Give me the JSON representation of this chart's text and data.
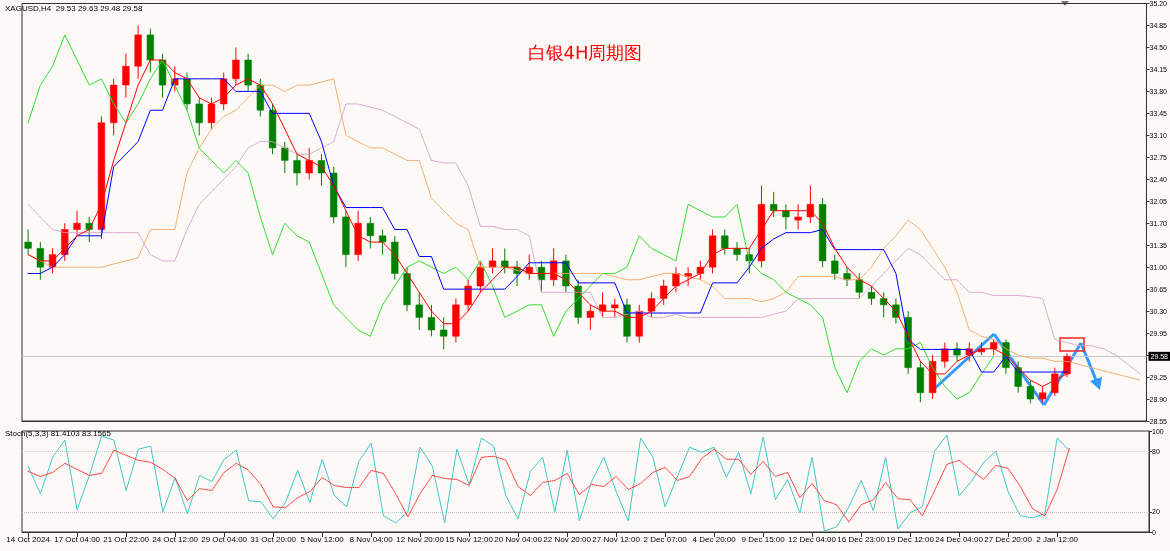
{
  "chart_data": [
    {
      "type": "candlestick",
      "title": "白银4H周期图",
      "annotations": [
        "XAGUSD,H4  29.53 29.63 29.48 29.58"
      ],
      "categories": [
        null,
        null,
        null,
        null,
        null,
        null,
        null,
        null,
        null,
        null,
        null,
        null,
        null,
        null,
        null,
        null,
        null,
        null,
        null,
        null,
        null,
        null,
        null,
        null,
        null,
        null,
        null,
        null,
        null,
        null,
        null,
        null,
        null,
        null,
        null,
        null,
        null,
        null,
        null,
        null,
        null,
        null,
        null,
        null,
        null,
        null,
        null,
        null,
        null,
        null,
        null,
        null,
        null,
        null,
        null,
        null,
        null,
        null,
        null,
        null,
        null,
        null,
        null,
        null,
        null,
        null,
        null,
        null,
        null,
        null,
        null,
        null,
        null,
        null,
        null,
        null,
        null,
        null,
        null,
        null,
        null,
        null,
        null,
        null,
        null,
        null,
        null,
        null,
        null,
        null,
        null,
        null
      ],
      "ohlc": [
        [
          31.4,
          31.6,
          31.2,
          31.3
        ],
        [
          31.3,
          31.4,
          30.8,
          31.0
        ],
        [
          31.0,
          31.3,
          30.9,
          31.2
        ],
        [
          31.2,
          31.7,
          31.1,
          31.6
        ],
        [
          31.6,
          31.9,
          31.5,
          31.7
        ],
        [
          31.7,
          31.8,
          31.4,
          31.6
        ],
        [
          31.6,
          33.4,
          31.45,
          33.3
        ],
        [
          33.3,
          34.0,
          33.1,
          33.9
        ],
        [
          33.9,
          34.4,
          33.7,
          34.2
        ],
        [
          34.2,
          34.85,
          34.0,
          34.7
        ],
        [
          34.7,
          34.8,
          34.1,
          34.3
        ],
        [
          34.3,
          34.4,
          33.7,
          33.9
        ],
        [
          33.9,
          34.2,
          33.8,
          34.0
        ],
        [
          34.0,
          34.1,
          33.5,
          33.6
        ],
        [
          33.6,
          33.7,
          33.1,
          33.3
        ],
        [
          33.3,
          33.7,
          33.2,
          33.6
        ],
        [
          33.6,
          34.1,
          33.5,
          34.0
        ],
        [
          34.0,
          34.5,
          33.9,
          34.3
        ],
        [
          34.3,
          34.4,
          33.8,
          33.9
        ],
        [
          33.9,
          34.0,
          33.4,
          33.5
        ],
        [
          33.5,
          33.6,
          32.8,
          32.9
        ],
        [
          32.9,
          33.0,
          32.5,
          32.7
        ],
        [
          32.7,
          32.8,
          32.3,
          32.5
        ],
        [
          32.5,
          32.9,
          32.4,
          32.7
        ],
        [
          32.7,
          32.8,
          32.3,
          32.5
        ],
        [
          32.5,
          32.6,
          31.7,
          31.8
        ],
        [
          31.8,
          31.9,
          31.0,
          31.2
        ],
        [
          31.2,
          31.9,
          31.1,
          31.7
        ],
        [
          31.7,
          31.8,
          31.3,
          31.5
        ],
        [
          31.5,
          31.6,
          31.2,
          31.4
        ],
        [
          31.4,
          31.5,
          30.8,
          30.9
        ],
        [
          30.9,
          31.0,
          30.3,
          30.4
        ],
        [
          30.4,
          30.6,
          30.0,
          30.2
        ],
        [
          30.2,
          30.4,
          29.9,
          30.0
        ],
        [
          30.0,
          30.2,
          29.69,
          29.9
        ],
        [
          29.9,
          30.5,
          29.8,
          30.4
        ],
        [
          30.4,
          30.8,
          30.3,
          30.7
        ],
        [
          30.7,
          31.1,
          30.6,
          31.0
        ],
        [
          31.0,
          31.3,
          30.9,
          31.1
        ],
        [
          31.1,
          31.3,
          30.9,
          31.0
        ],
        [
          31.0,
          31.1,
          30.7,
          30.9
        ],
        [
          30.9,
          31.2,
          30.8,
          31.0
        ],
        [
          31.0,
          31.1,
          30.6,
          30.8
        ],
        [
          30.8,
          31.3,
          30.7,
          31.1
        ],
        [
          31.1,
          31.2,
          30.6,
          30.7
        ],
        [
          30.7,
          30.8,
          30.1,
          30.2
        ],
        [
          30.2,
          30.4,
          30.0,
          30.3
        ],
        [
          30.3,
          30.6,
          30.2,
          30.4
        ],
        [
          30.35,
          30.5,
          30.2,
          30.4
        ],
        [
          30.4,
          30.5,
          29.8,
          29.9
        ],
        [
          29.9,
          30.4,
          29.8,
          30.3
        ],
        [
          30.3,
          30.6,
          30.2,
          30.5
        ],
        [
          30.5,
          30.8,
          30.4,
          30.7
        ],
        [
          30.7,
          31.0,
          30.6,
          30.9
        ],
        [
          30.85,
          31.0,
          30.7,
          30.9
        ],
        [
          30.9,
          31.1,
          30.8,
          31.0
        ],
        [
          31.0,
          31.6,
          30.9,
          31.5
        ],
        [
          31.5,
          31.6,
          31.2,
          31.3
        ],
        [
          31.3,
          31.4,
          31.1,
          31.2
        ],
        [
          31.2,
          31.3,
          30.9,
          31.1
        ],
        [
          31.1,
          32.3,
          31.0,
          32.0
        ],
        [
          32.0,
          32.2,
          31.8,
          31.9
        ],
        [
          31.9,
          32.0,
          31.6,
          31.8
        ],
        [
          31.75,
          32.0,
          31.6,
          31.8
        ],
        [
          31.8,
          32.3,
          31.7,
          32.0
        ],
        [
          32.0,
          32.1,
          31.0,
          31.1
        ],
        [
          31.1,
          31.2,
          30.8,
          30.9
        ],
        [
          30.9,
          31.0,
          30.7,
          30.8
        ],
        [
          30.8,
          30.9,
          30.5,
          30.6
        ],
        [
          30.6,
          30.7,
          30.4,
          30.5
        ],
        [
          30.5,
          30.6,
          30.2,
          30.4
        ],
        [
          30.4,
          30.5,
          30.1,
          30.2
        ],
        [
          30.2,
          30.3,
          29.3,
          29.4
        ],
        [
          29.4,
          29.5,
          28.85,
          29.0
        ],
        [
          29.0,
          29.6,
          28.9,
          29.5
        ],
        [
          29.5,
          29.8,
          29.4,
          29.7
        ],
        [
          29.7,
          29.8,
          29.5,
          29.6
        ],
        [
          29.6,
          29.8,
          29.5,
          29.7
        ],
        [
          29.65,
          29.8,
          29.6,
          29.7
        ],
        [
          29.7,
          29.85,
          29.6,
          29.8
        ],
        [
          29.8,
          29.85,
          29.3,
          29.4
        ],
        [
          29.4,
          29.5,
          29.0,
          29.1
        ],
        [
          29.1,
          29.2,
          28.83,
          28.9
        ],
        [
          28.9,
          29.1,
          28.85,
          29.0
        ],
        [
          29.0,
          29.4,
          28.95,
          29.3
        ],
        [
          29.3,
          29.63,
          29.25,
          29.58
        ],
        null,
        null,
        null,
        null,
        null,
        null
      ],
      "colors": [
        "#008000",
        "#008000",
        "#ff0000",
        "#ff0000",
        "#ff0000",
        "#008000",
        "#ff0000",
        "#ff0000",
        "#ff0000",
        "#ff0000",
        "#008000",
        "#008000",
        "#ff0000",
        "#008000",
        "#008000",
        "#ff0000",
        "#ff0000",
        "#ff0000",
        "#008000",
        "#008000",
        "#008000",
        "#008000",
        "#008000",
        "#ff0000",
        "#008000",
        "#008000",
        "#008000",
        "#ff0000",
        "#008000",
        "#008000",
        "#008000",
        "#008000",
        "#008000",
        "#008000",
        "#008000",
        "#ff0000",
        "#ff0000",
        "#ff0000",
        "#ff0000",
        "#008000",
        "#008000",
        "#ff0000",
        "#008000",
        "#ff0000",
        "#008000",
        "#008000",
        "#ff0000",
        "#ff0000",
        "#ff0000",
        "#008000",
        "#ff0000",
        "#ff0000",
        "#ff0000",
        "#ff0000",
        "#ff0000",
        "#ff0000",
        "#ff0000",
        "#008000",
        "#008000",
        "#008000",
        "#ff0000",
        "#008000",
        "#008000",
        "#ff0000",
        "#ff0000",
        "#008000",
        "#008000",
        "#008000",
        "#008000",
        "#008000",
        "#008000",
        "#008000",
        "#008000",
        "#008000",
        "#ff0000",
        "#ff0000",
        "#008000",
        "#ff0000",
        "#ff0000",
        "#ff0000",
        "#008000",
        "#008000",
        "#008000",
        "#ff0000",
        "#ff0000",
        "#ff0000",
        null,
        null,
        null,
        null,
        null,
        null
      ],
      "series": [
        {
          "type": "line",
          "color": "#f4a460",
          "line_style": "dotted",
          "values": [
            31.2,
            31.1,
            31.0,
            31.0,
            31.0,
            31.0,
            31.0,
            31.05,
            31.1,
            31.15,
            31.6,
            31.6,
            31.6,
            32.5,
            32.9,
            33.2,
            33.4,
            33.5,
            33.7,
            33.9,
            33.9,
            33.8,
            33.9,
            33.9,
            33.95,
            34.0,
            33.1,
            33.0,
            32.9,
            32.9,
            32.8,
            32.7,
            32.7,
            32.1,
            31.9,
            31.7,
            31.6,
            31.0,
            31.0,
            31.0,
            30.95,
            30.9,
            30.9,
            30.9,
            30.9,
            30.9,
            30.9,
            30.9,
            30.85,
            30.8,
            30.8,
            30.85,
            30.9,
            30.9,
            30.85,
            30.8,
            30.7,
            30.5,
            30.5,
            30.5,
            30.45,
            30.5,
            30.6,
            30.85,
            30.85,
            30.85,
            30.85,
            30.8,
            30.8,
            31.0,
            31.3,
            31.5,
            31.75,
            31.6,
            31.3,
            31.0,
            30.6,
            30.0,
            29.9,
            29.85,
            29.7,
            29.6,
            29.55,
            29.55,
            29.5,
            29.5,
            29.45,
            29.4,
            29.35,
            29.3,
            29.25,
            29.2
          ]
        },
        {
          "type": "line",
          "color": "#d8a0c8",
          "line_style": "dotted",
          "values": [
            32.0,
            31.8,
            31.6,
            31.55,
            31.55,
            31.55,
            31.55,
            31.55,
            31.55,
            31.55,
            31.2,
            31.1,
            31.1,
            31.6,
            32.0,
            32.2,
            32.4,
            32.6,
            32.9,
            33.0,
            33.0,
            32.9,
            32.8,
            32.8,
            32.9,
            33.0,
            33.6,
            33.6,
            33.55,
            33.5,
            33.4,
            33.3,
            33.2,
            32.7,
            32.66,
            32.66,
            32.3,
            31.65,
            31.65,
            31.6,
            31.6,
            31.5,
            30.6,
            30.6,
            30.6,
            30.6,
            30.6,
            30.2,
            30.2,
            30.25,
            30.3,
            30.2,
            30.2,
            30.25,
            30.2,
            30.2,
            30.2,
            30.2,
            30.2,
            30.2,
            30.2,
            30.25,
            30.3,
            30.5,
            30.5,
            30.5,
            30.5,
            30.5,
            30.5,
            30.7,
            30.9,
            31.1,
            31.3,
            31.2,
            31.0,
            30.8,
            30.8,
            30.6,
            30.6,
            30.55,
            30.55,
            30.55,
            30.53,
            30.5,
            29.85,
            29.8,
            29.75,
            29.75,
            29.7,
            29.6,
            29.45,
            29.3
          ]
        },
        {
          "type": "line",
          "color": "#33dd33",
          "values": [
            33.3,
            33.9,
            34.2,
            34.7,
            34.3,
            33.9,
            34.0,
            33.6,
            33.3,
            33.6,
            34.0,
            34.3,
            33.9,
            33.5,
            32.9,
            32.7,
            32.5,
            32.7,
            32.5,
            31.8,
            31.2,
            31.7,
            31.5,
            31.4,
            30.9,
            30.4,
            30.2,
            30.0,
            29.9,
            30.4,
            30.7,
            31.0,
            31.1,
            31.0,
            30.9,
            31.0,
            30.8,
            31.1,
            30.7,
            30.2,
            30.3,
            30.4,
            30.4,
            29.9,
            30.3,
            30.5,
            30.7,
            30.9,
            30.9,
            31.0,
            31.5,
            31.3,
            31.2,
            31.1,
            32.0,
            31.9,
            31.8,
            31.8,
            32.0,
            31.1,
            30.9,
            30.8,
            30.6,
            30.5,
            30.4,
            30.2,
            29.4,
            29.0,
            29.5,
            29.7,
            29.6,
            29.7,
            29.7,
            29.8,
            29.4,
            29.1,
            28.9,
            29.0,
            29.3,
            29.58,
            null,
            null,
            null,
            null,
            null,
            null,
            null,
            null,
            null,
            null,
            null,
            null
          ]
        },
        {
          "type": "line",
          "color": "#0000ff",
          "values": [
            30.9,
            30.9,
            31.0,
            31.2,
            31.5,
            31.5,
            31.5,
            32.6,
            32.8,
            33.0,
            33.5,
            33.5,
            34.0,
            34.0,
            34.0,
            34.0,
            34.0,
            33.8,
            33.8,
            33.8,
            33.45,
            33.45,
            33.45,
            33.45,
            33.0,
            32.3,
            31.95,
            31.95,
            31.95,
            31.95,
            31.6,
            31.6,
            31.17,
            31.17,
            30.65,
            30.65,
            30.65,
            30.65,
            30.65,
            30.65,
            30.85,
            31.07,
            31.07,
            31.07,
            31.07,
            30.75,
            30.75,
            30.75,
            30.75,
            30.27,
            30.27,
            30.27,
            30.27,
            30.27,
            30.27,
            30.27,
            30.75,
            30.75,
            30.75,
            31.0,
            31.3,
            31.45,
            31.55,
            31.55,
            31.55,
            31.6,
            31.28,
            31.28,
            31.28,
            31.28,
            31.28,
            30.9,
            29.85,
            29.69,
            29.69,
            29.69,
            29.69,
            29.69,
            29.33,
            29.33,
            29.58,
            29.33,
            29.33,
            29.33,
            29.33,
            29.33,
            null,
            null,
            null,
            null,
            null,
            null
          ]
        },
        {
          "type": "line",
          "color": "#ff0000",
          "values": [
            31.2,
            31.1,
            31.1,
            31.3,
            31.5,
            31.6,
            32.0,
            32.7,
            33.3,
            33.9,
            34.3,
            34.3,
            34.1,
            34.0,
            33.7,
            33.6,
            33.7,
            33.9,
            34.0,
            33.9,
            33.6,
            33.2,
            32.8,
            32.7,
            32.6,
            32.3,
            31.9,
            31.5,
            31.4,
            31.4,
            31.2,
            30.9,
            30.6,
            30.3,
            30.1,
            30.1,
            30.3,
            30.6,
            30.8,
            31.0,
            31.0,
            30.9,
            30.9,
            30.9,
            30.8,
            30.6,
            30.4,
            30.3,
            30.3,
            30.2,
            30.2,
            30.3,
            30.5,
            30.7,
            30.8,
            30.9,
            31.2,
            31.3,
            31.3,
            31.3,
            31.6,
            31.9,
            31.9,
            31.9,
            31.9,
            31.7,
            31.3,
            31.0,
            30.8,
            30.7,
            30.5,
            30.3,
            29.9,
            29.5,
            29.3,
            29.3,
            29.5,
            29.6,
            29.7,
            29.7,
            29.6,
            29.4,
            29.2,
            29.1,
            29.2,
            29.3,
            null,
            null,
            null,
            null,
            null,
            null
          ]
        }
      ],
      "ylim": [
        28.55,
        35.2
      ],
      "yticks": [
        28.55,
        {
          "value": 28.9,
          "label": "28.90"
        },
        29.25,
        {
          "value": 29.6,
          "label": null
        },
        29.95,
        {
          "value": 30.3,
          "label": "30.30"
        },
        30.65,
        {
          "value": 31.0,
          "label": "31.00"
        },
        31.35,
        {
          "value": 31.7,
          "label": "31.70"
        },
        32.05,
        {
          "value": 32.4,
          "label": "32.40"
        },
        32.75,
        {
          "value": 33.1,
          "label": "33.10"
        },
        33.45,
        {
          "value": 33.8,
          "label": "33.80"
        },
        34.15,
        {
          "value": 34.5,
          "label": "34.50"
        },
        34.85,
        {
          "value": 35.2,
          "label": "35.20"
        }
      ],
      "ref_lines": [
        {
          "axis": "y",
          "value": 29.58,
          "label": "29.58",
          "color": "#c8c8c8"
        }
      ],
      "marker": "none",
      "tick_labels": "y"
    },
    {
      "type": "line",
      "annotations": [
        "Stoch(5,3,3) 81.4103 83.1565"
      ],
      "categories": [
        "14 Oct 2024",
        null,
        null,
        null,
        "17 Oct 04:00",
        null,
        null,
        null,
        "21 Oct 22:00",
        null,
        null,
        null,
        "24 Oct 12:00",
        null,
        null,
        null,
        "29 Oct 04:00",
        null,
        null,
        null,
        "31 Oct 20:00",
        null,
        null,
        null,
        "5 Nov 12:00",
        null,
        null,
        null,
        "8 Nov 04:00",
        null,
        null,
        null,
        "12 Nov 20:00",
        null,
        null,
        null,
        "15 Nov 12:00",
        null,
        null,
        null,
        "20 Nov 04:00",
        null,
        null,
        null,
        "22 Nov 20:00",
        null,
        null,
        null,
        "27 Nov 12:00",
        null,
        null,
        null,
        "2 Dec 07:00",
        null,
        null,
        null,
        "4 Dec 20:00",
        null,
        null,
        null,
        "9 Dec 15:00",
        null,
        null,
        null,
        "12 Dec 04:00",
        null,
        null,
        null,
        "16 Dec 23:00",
        null,
        null,
        null,
        "19 Dec 12:00",
        null,
        null,
        null,
        "24 Dec 04:00",
        null,
        null,
        null,
        "27 Dec 20:00",
        null,
        null,
        null,
        "2 Jan 12:00",
        null,
        null,
        null,
        null,
        null,
        null,
        null
      ],
      "series": [
        {
          "color": "#40c8c8",
          "line_style": "solid",
          "values": [
            65,
            38,
            74,
            91,
            22,
            56,
            95,
            91,
            41,
            82,
            85,
            20,
            54,
            18,
            56,
            50,
            72,
            81,
            31,
            30,
            13,
            29,
            61,
            29,
            72,
            36,
            25,
            70,
            88,
            16,
            9,
            20,
            84,
            65,
            9,
            82,
            47,
            93,
            85,
            36,
            13,
            60,
            74,
            20,
            81,
            11,
            50,
            74,
            40,
            11,
            93,
            74,
            25,
            55,
            84,
            79,
            84,
            54,
            79,
            38,
            94,
            32,
            52,
            19,
            74,
            1,
            5,
            25,
            51,
            21,
            74,
            3,
            19,
            25,
            80,
            96,
            36,
            50,
            69,
            80,
            40,
            16,
            14,
            18,
            93,
            81,
            null,
            null,
            null,
            null,
            null,
            null
          ]
        },
        {
          "color": "#ff3030",
          "line_style": "dotted",
          "values": [
            60,
            55,
            59,
            68,
            62,
            56,
            58,
            81,
            76,
            71,
            69,
            62,
            53,
            31,
            43,
            41,
            59,
            68,
            61,
            47,
            25,
            24,
            34,
            40,
            54,
            46,
            44,
            44,
            61,
            58,
            38,
            15,
            38,
            56,
            53,
            52,
            46,
            74,
            75,
            71,
            45,
            36,
            49,
            51,
            58,
            37,
            47,
            45,
            55,
            42,
            48,
            59,
            64,
            51,
            55,
            73,
            82,
            72,
            72,
            57,
            70,
            55,
            59,
            34,
            48,
            31,
            27,
            10,
            27,
            32,
            49,
            33,
            32,
            16,
            41,
            67,
            71,
            61,
            52,
            66,
            63,
            45,
            23,
            16,
            42,
            83,
            null,
            null,
            null,
            null,
            null,
            null
          ]
        }
      ],
      "ylim": [
        0,
        100
      ],
      "yticks": [
        0,
        20,
        80,
        100
      ],
      "ref_lines": [
        {
          "axis": "y",
          "value": 20,
          "color": "#c8c8c8",
          "line_style": "dotted"
        },
        {
          "axis": "y",
          "value": 80,
          "color": "#c8c8c8",
          "line_style": "dotted"
        }
      ],
      "marker": "none"
    }
  ]
}
